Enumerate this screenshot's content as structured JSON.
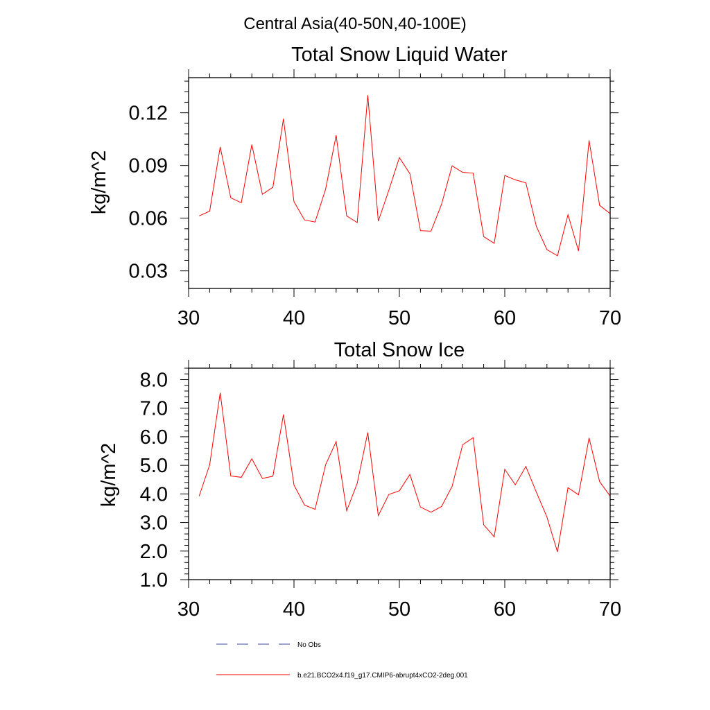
{
  "figure_title": "Central Asia(40-50N,40-100E)",
  "chart_data": [
    {
      "type": "line",
      "title": "Total Snow Liquid Water",
      "xlabel": "",
      "ylabel": "kg/m^2",
      "xlim": [
        30,
        70
      ],
      "ylim": [
        0.02,
        0.14
      ],
      "xticks": [
        30,
        40,
        50,
        60,
        70
      ],
      "xtick_labels": [
        "30",
        "40",
        "50",
        "60",
        "70"
      ],
      "yticks": [
        0.03,
        0.06,
        0.09,
        0.12
      ],
      "ytick_labels": [
        "0.03",
        "0.06",
        "0.09",
        "0.12"
      ],
      "yminor_step": 0.006,
      "xminor_step": 2,
      "grid": false,
      "series": [
        {
          "name": "b.e21.BCO2x4.f19_g17.CMIP6-abrupt4xCO2-2deg.001",
          "color": "#ff0000",
          "x": [
            31,
            32,
            33,
            34,
            35,
            36,
            37,
            38,
            39,
            40,
            41,
            42,
            43,
            44,
            45,
            46,
            47,
            48,
            49,
            50,
            51,
            52,
            53,
            54,
            55,
            56,
            57,
            58,
            59,
            60,
            61,
            62,
            63,
            64,
            65,
            66,
            67,
            68,
            69,
            70
          ],
          "values": [
            0.0613,
            0.064,
            0.1006,
            0.0716,
            0.0688,
            0.1019,
            0.0736,
            0.0776,
            0.1166,
            0.0694,
            0.059,
            0.0578,
            0.0765,
            0.1072,
            0.0613,
            0.0575,
            0.13,
            0.0583,
            0.0759,
            0.0945,
            0.0853,
            0.0529,
            0.0526,
            0.0679,
            0.0898,
            0.0861,
            0.0856,
            0.0495,
            0.0457,
            0.0843,
            0.0818,
            0.0801,
            0.0553,
            0.0421,
            0.0386,
            0.062,
            0.0413,
            0.1043,
            0.0673,
            0.0626
          ]
        }
      ]
    },
    {
      "type": "line",
      "title": "Total Snow Ice",
      "xlabel": "",
      "ylabel": "kg/m^2",
      "xlim": [
        30,
        70
      ],
      "ylim": [
        1.0,
        8.4
      ],
      "xticks": [
        30,
        40,
        50,
        60,
        70
      ],
      "xtick_labels": [
        "30",
        "40",
        "50",
        "60",
        "70"
      ],
      "yticks": [
        1.0,
        2.0,
        3.0,
        4.0,
        5.0,
        6.0,
        7.0,
        8.0
      ],
      "ytick_labels": [
        "1.0",
        "2.0",
        "3.0",
        "4.0",
        "5.0",
        "6.0",
        "7.0",
        "8.0"
      ],
      "yminor_step": 0.2,
      "xminor_step": 2,
      "grid": false,
      "series": [
        {
          "name": "b.e21.BCO2x4.f19_g17.CMIP6-abrupt4xCO2-2deg.001",
          "color": "#ff0000",
          "x": [
            31,
            32,
            33,
            34,
            35,
            36,
            37,
            38,
            39,
            40,
            41,
            42,
            43,
            44,
            45,
            46,
            47,
            48,
            49,
            50,
            51,
            52,
            53,
            54,
            55,
            56,
            57,
            58,
            59,
            60,
            61,
            62,
            63,
            64,
            65,
            66,
            67,
            68,
            69,
            70
          ],
          "values": [
            3.92,
            5.02,
            7.54,
            4.63,
            4.58,
            5.23,
            4.54,
            4.62,
            6.78,
            4.31,
            3.61,
            3.46,
            5.02,
            5.83,
            3.41,
            4.37,
            6.15,
            3.24,
            3.98,
            4.11,
            4.68,
            3.54,
            3.36,
            3.56,
            4.26,
            5.72,
            5.97,
            2.92,
            2.5,
            4.86,
            4.32,
            4.96,
            4.06,
            3.19,
            1.97,
            4.22,
            3.97,
            5.96,
            4.43,
            3.92
          ]
        }
      ]
    }
  ],
  "legend": [
    {
      "label": "No Obs",
      "color": "#3c46a0",
      "style": "dashed"
    },
    {
      "label": "b.e21.BCO2x4.f19_g17.CMIP6-abrupt4xCO2-2deg.001",
      "color": "#ff0000",
      "style": "solid"
    }
  ]
}
